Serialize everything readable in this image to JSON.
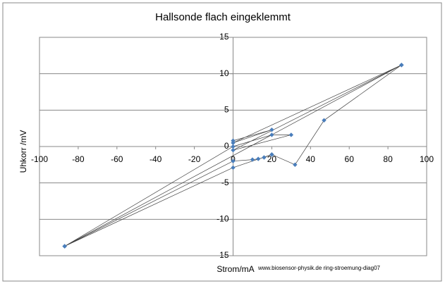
{
  "chart_data": {
    "type": "scatter",
    "title": "Hallsonde flach eingeklemmt",
    "x_label": "Strom/mA",
    "y_label": "Uhkorr /mV",
    "watermark": "www.biosensor-physik.de ring-stroemung-diag07",
    "x": [
      0,
      20,
      0,
      87,
      -87,
      0,
      20,
      30,
      0,
      87,
      -87,
      0,
      10,
      13,
      16,
      20,
      32,
      47,
      87,
      -87,
      0,
      20
    ],
    "values": [
      0.8,
      2.3,
      0.5,
      11.2,
      -13.7,
      0,
      1.6,
      1.6,
      -0.5,
      11.2,
      -13.7,
      -2,
      -1.8,
      -1.7,
      -1.5,
      -1.1,
      -2.5,
      3.6,
      11.2,
      -13.7,
      -2.9,
      -1.1
    ],
    "marker_color": "#4a7ebb",
    "line_color": "#404040",
    "xlim": [
      -100,
      100
    ],
    "xticks": [
      -100,
      -80,
      -60,
      -40,
      -20,
      0,
      20,
      40,
      60,
      80,
      100
    ],
    "ylim": [
      -15,
      15
    ],
    "yticks": [
      -15,
      -10,
      -5,
      0,
      5,
      10,
      15
    ],
    "grid": true
  }
}
